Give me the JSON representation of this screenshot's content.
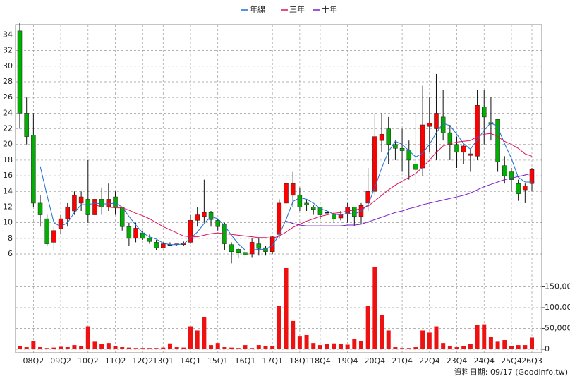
{
  "chart_data": {
    "type": "candlestick",
    "categories": [
      null,
      null,
      "08Q2",
      null,
      null,
      null,
      "09Q2",
      null,
      null,
      null,
      "10Q2",
      null,
      null,
      null,
      "11Q2",
      null,
      null,
      null,
      "12Q2",
      null,
      null,
      "13Q1",
      null,
      null,
      null,
      "14Q1",
      null,
      null,
      null,
      "15Q1",
      null,
      null,
      null,
      "16Q1",
      null,
      null,
      null,
      "17Q1",
      null,
      null,
      null,
      "18Q1",
      null,
      null,
      "18Q4",
      null,
      null,
      null,
      "19Q4",
      null,
      null,
      null,
      "20Q4",
      null,
      null,
      null,
      "21Q4",
      null,
      null,
      null,
      "22Q4",
      null,
      null,
      null,
      "23Q4",
      null,
      null,
      null,
      "24Q4",
      null,
      null,
      null,
      "25Q4",
      null,
      null,
      "26Q3"
    ],
    "open": [
      34.5,
      24,
      21.2,
      12.5,
      10.5,
      7.5,
      9.2,
      10.5,
      11.5,
      12.5,
      13,
      11,
      13,
      12,
      13.3,
      12,
      9.5,
      8,
      8.7,
      8,
      7.5,
      6.8,
      7.2,
      7.2,
      7.2,
      7.5,
      10.3,
      10.8,
      11.3,
      10.3,
      9.8,
      7.2,
      6.6,
      6.2,
      6,
      7.3,
      6.8,
      6.3,
      8.5,
      12.5,
      13.5,
      13.5,
      12.5,
      12,
      12,
      11.3,
      11,
      10.6,
      11.2,
      12,
      10.8,
      12.5,
      14,
      20.5,
      22,
      20,
      19.5,
      19.3,
      17.5,
      17,
      22.3,
      22,
      23.5,
      21.5,
      20,
      19,
      18.6,
      18.5,
      24.8,
      22.8,
      23.2,
      17.3,
      16.5,
      15,
      14.2,
      15
    ],
    "high": [
      35.5,
      26,
      24,
      13.5,
      11,
      9.5,
      11,
      12.5,
      14,
      14,
      18,
      14,
      14.5,
      15,
      14,
      12,
      10,
      10,
      9,
      8.5,
      7.8,
      7.5,
      7.5,
      7.3,
      7.6,
      11,
      12,
      15.5,
      11.5,
      10.5,
      10,
      7.5,
      6.8,
      6.5,
      8,
      8,
      7,
      8.3,
      13,
      16,
      16.5,
      14.5,
      13,
      12.3,
      12,
      11.5,
      11.3,
      11.5,
      12.5,
      12,
      12.5,
      17,
      24,
      24,
      23.5,
      20.5,
      22,
      20.5,
      24,
      27.5,
      26,
      29,
      27,
      22.5,
      21,
      20,
      19.5,
      27,
      27,
      26,
      23.3,
      18.5,
      17,
      15.5,
      15,
      17
    ],
    "low": [
      22,
      20,
      12,
      9.5,
      7,
      6.5,
      8.5,
      9.5,
      11,
      11.5,
      10,
      10.5,
      11,
      11.5,
      11,
      9,
      7,
      7.5,
      7.8,
      7.3,
      6.5,
      6.7,
      7,
      7.1,
      7,
      7.3,
      9.5,
      10,
      9.5,
      9,
      6.5,
      4.8,
      5.5,
      5.5,
      5.6,
      5.8,
      5.8,
      6,
      8,
      12,
      12,
      11.5,
      11.5,
      11,
      10.5,
      11,
      10,
      10.3,
      10,
      9.6,
      9.8,
      11.5,
      13.5,
      19,
      17.5,
      18,
      16.5,
      15.5,
      15,
      16,
      19,
      18,
      20.5,
      18,
      17,
      17.5,
      16.5,
      18,
      20,
      20.5,
      16.5,
      15,
      14,
      12.8,
      12.5,
      14
    ],
    "close": [
      24,
      21,
      12.5,
      11,
      7.3,
      9,
      10.5,
      12,
      13.5,
      13.3,
      11,
      13,
      12,
      13,
      12,
      9.5,
      8,
      9.3,
      8,
      7.6,
      6.8,
      7.3,
      7.2,
      7.3,
      7.4,
      10.3,
      11,
      11.3,
      10.4,
      9.5,
      7.3,
      6.3,
      6.2,
      5.9,
      7.5,
      6.7,
      6.3,
      8.2,
      12.5,
      15,
      15,
      12,
      12.3,
      11.7,
      11,
      11.3,
      10.5,
      11,
      12,
      10.8,
      12.2,
      14,
      21,
      21.3,
      20,
      19.5,
      19.2,
      18,
      16.8,
      22.5,
      22.7,
      24,
      21.5,
      20,
      19,
      19.8,
      18.8,
      25,
      23.5,
      22.6,
      17.8,
      16,
      15.5,
      13.7,
      14.7,
      16.8
    ],
    "up_color": "#ff0000",
    "down_color": "#00b000",
    "ylim": [
      4.2,
      35.3
    ],
    "yticks": [
      6,
      8,
      10,
      12,
      14,
      16,
      18,
      20,
      22,
      24,
      26,
      28,
      30,
      32,
      34
    ],
    "series": [
      {
        "name": "年線",
        "color": "#1f6fd0",
        "values": [
          null,
          null,
          null,
          17.2,
          13.5,
          10,
          9.5,
          10,
          11.3,
          12.3,
          12.3,
          12.5,
          12.4,
          12.4,
          12.5,
          12,
          10.8,
          9.7,
          8.7,
          8.2,
          7.9,
          7.4,
          7.2,
          7.2,
          7.3,
          8,
          8.8,
          9.9,
          10.8,
          10.5,
          9.6,
          8.4,
          7.3,
          6.5,
          6.5,
          6.6,
          6.6,
          7.1,
          8.5,
          10.4,
          12.7,
          13.2,
          13,
          12.5,
          11.8,
          11.5,
          11.1,
          11,
          11.2,
          11.1,
          11.5,
          12.3,
          14.5,
          17,
          19.1,
          20.4,
          20,
          19.2,
          18.4,
          18.9,
          20,
          21.5,
          22.7,
          22.4,
          21.3,
          20.1,
          19.4,
          20.6,
          21.8,
          22.8,
          22.2,
          20.1,
          18.2,
          15.8,
          15.2,
          15.2
        ]
      },
      {
        "name": "三年",
        "color": "#e0105a",
        "values": [
          null,
          null,
          null,
          null,
          null,
          null,
          null,
          null,
          null,
          null,
          null,
          12.3,
          12,
          12,
          11.9,
          11.9,
          11.6,
          11.2,
          10.9,
          10.5,
          10,
          9.5,
          9.1,
          8.7,
          8.3,
          8.2,
          8.2,
          8.4,
          8.6,
          8.7,
          8.6,
          8.5,
          8.4,
          8.3,
          8.2,
          8.1,
          8.1,
          8,
          8.3,
          8.8,
          9.4,
          9.8,
          10.2,
          10.5,
          10.8,
          11,
          11.2,
          11.3,
          11.5,
          11.6,
          11.8,
          12.1,
          12.8,
          13.5,
          14.2,
          14.8,
          15.3,
          15.8,
          16.3,
          17.1,
          18,
          19,
          19.8,
          20.1,
          20.3,
          20.4,
          20.5,
          21,
          21.3,
          21.4,
          21,
          20.4,
          20,
          19.5,
          18.8,
          18.5
        ]
      },
      {
        "name": "十年",
        "color": "#7a1fc8",
        "values": [
          null,
          null,
          null,
          null,
          null,
          null,
          null,
          null,
          null,
          null,
          null,
          null,
          null,
          null,
          null,
          null,
          null,
          null,
          null,
          null,
          null,
          null,
          null,
          null,
          null,
          null,
          null,
          null,
          null,
          null,
          null,
          null,
          null,
          null,
          null,
          null,
          null,
          null,
          null,
          10.2,
          9.9,
          9.7,
          9.6,
          9.6,
          9.6,
          9.6,
          9.6,
          9.6,
          9.7,
          9.7,
          9.8,
          10.1,
          10.4,
          10.7,
          11,
          11.3,
          11.5,
          11.8,
          12,
          12.3,
          12.5,
          12.7,
          12.9,
          13.1,
          13.3,
          13.5,
          13.8,
          14.2,
          14.6,
          14.9,
          15.2,
          15.5,
          15.7,
          15.9,
          16.1,
          16.3
        ]
      }
    ],
    "volume": {
      "color": "#ee1111",
      "values": [
        8000,
        5000,
        20000,
        5000,
        3000,
        4000,
        6000,
        5000,
        10000,
        8000,
        55000,
        18000,
        12000,
        15000,
        8000,
        5000,
        4000,
        3000,
        3000,
        3000,
        3000,
        4000,
        14000,
        5000,
        4000,
        55000,
        45000,
        77000,
        10000,
        15000,
        5000,
        4000,
        3000,
        10000,
        3000,
        10000,
        8000,
        8000,
        105000,
        195000,
        68000,
        32000,
        34000,
        15000,
        10000,
        12000,
        14000,
        12000,
        11000,
        25000,
        20000,
        105000,
        198000,
        83000,
        45000,
        5000,
        3000,
        3000,
        5000,
        45000,
        40000,
        55000,
        15000,
        8000,
        5000,
        8000,
        12000,
        58000,
        60000,
        30000,
        18000,
        22000,
        8000,
        10000,
        10000,
        28000
      ]
    },
    "y2lim": [
      0,
      200000
    ],
    "y2ticks": [
      0,
      {
        "value": 50000,
        "label": "50,000"
      },
      {
        "value": 100000,
        "label": "100,000"
      },
      {
        "value": 150000,
        "label": "150,000"
      }
    ],
    "grid": true,
    "footer": "資料日期: 09/17 (Goodinfo.tw)"
  }
}
